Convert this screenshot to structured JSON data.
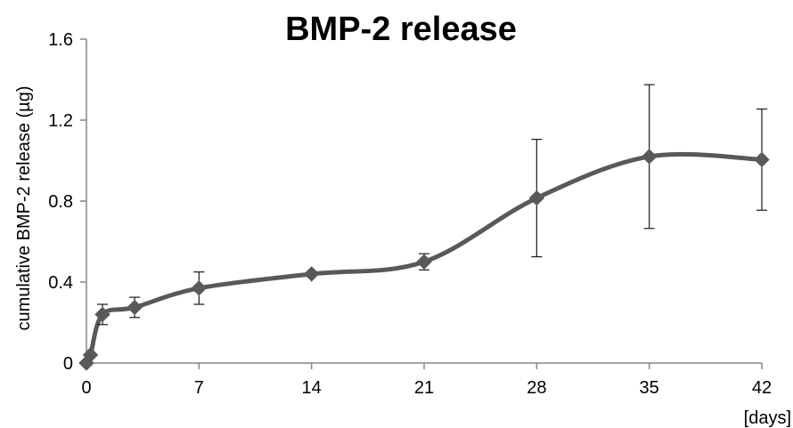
{
  "chart_data": {
    "type": "line",
    "title": "BMP-2 release",
    "xlabel": "[days]",
    "ylabel": "cumulative BMP-2 release (µg)",
    "x_ticks": [
      "0",
      "7",
      "14",
      "21",
      "28",
      "35",
      "42"
    ],
    "y_ticks": [
      "0",
      "0.4",
      "0.8",
      "1.2",
      "1.6"
    ],
    "xlim": [
      0,
      42
    ],
    "ylim": [
      0,
      1.6
    ],
    "grid": false,
    "series": [
      {
        "x": [
          0,
          0.25,
          1,
          3,
          7,
          14,
          21,
          28,
          35,
          42
        ],
        "y": [
          0.0,
          0.04,
          0.24,
          0.275,
          0.37,
          0.44,
          0.5,
          0.815,
          1.02,
          1.005
        ],
        "error": [
          null,
          null,
          0.05,
          0.05,
          0.08,
          0.0,
          0.04,
          0.29,
          0.355,
          0.25
        ],
        "color": "#595959",
        "marker": "diamond"
      }
    ]
  }
}
